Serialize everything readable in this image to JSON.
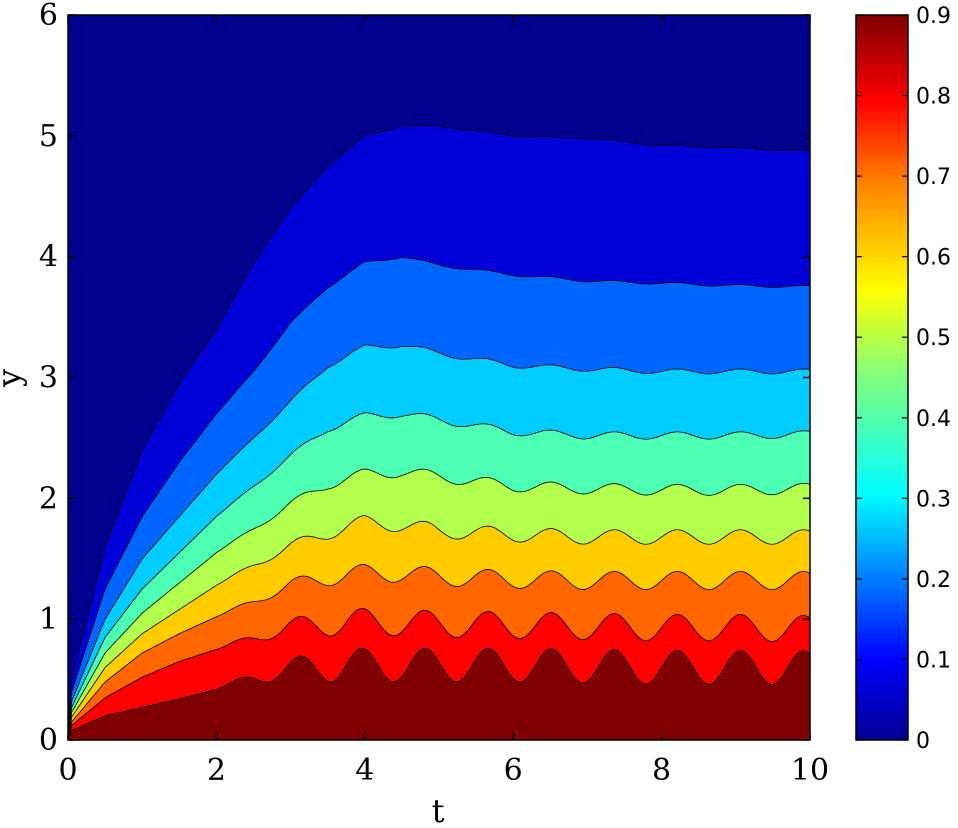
{
  "chart_data": {
    "type": "contour",
    "title": "",
    "xlabel": "t",
    "ylabel": "y",
    "xlim": [
      0,
      10
    ],
    "ylim": [
      0,
      6
    ],
    "x_ticks": [
      "0",
      "2",
      "4",
      "6",
      "8",
      "10"
    ],
    "y_ticks": [
      "0",
      "1",
      "2",
      "3",
      "4",
      "5",
      "6"
    ],
    "colorbar": {
      "range": [
        0,
        0.9
      ],
      "ticks": [
        "0",
        "0.1",
        "0.2",
        "0.3",
        "0.4",
        "0.5",
        "0.6",
        "0.7",
        "0.8",
        "0.9"
      ],
      "colormap": "jet"
    },
    "levels": [
      {
        "value": 0.05,
        "color": "#0000d9",
        "boundary": [
          [
            0.05,
            0.5
          ],
          [
            0.5,
            1.6
          ],
          [
            1,
            2.4
          ],
          [
            1.5,
            2.95
          ],
          [
            2,
            3.4
          ],
          [
            2.5,
            3.95
          ],
          [
            3,
            4.4
          ],
          [
            3.5,
            4.75
          ],
          [
            4,
            5.0
          ],
          [
            4.5,
            5.08
          ],
          [
            5,
            5.08
          ],
          [
            6,
            5.0
          ],
          [
            7,
            4.98
          ],
          [
            8,
            4.92
          ],
          [
            9,
            4.9
          ],
          [
            10,
            4.87
          ]
        ]
      },
      {
        "value": 0.15,
        "color": "#0066ff",
        "boundary": [
          [
            0.05,
            0.4
          ],
          [
            0.5,
            1.25
          ],
          [
            1,
            1.85
          ],
          [
            1.5,
            2.3
          ],
          [
            2,
            2.7
          ],
          [
            2.5,
            3.05
          ],
          [
            3,
            3.45
          ],
          [
            3.5,
            3.75
          ],
          [
            4,
            3.95
          ],
          [
            4.5,
            4.0
          ],
          [
            5,
            3.93
          ],
          [
            6,
            3.85
          ],
          [
            7,
            3.8
          ],
          [
            8,
            3.78
          ],
          [
            9,
            3.76
          ],
          [
            10,
            3.75
          ]
        ]
      },
      {
        "value": 0.25,
        "color": "#00ccff",
        "boundary": [
          [
            0.05,
            0.32
          ],
          [
            0.5,
            1.0
          ],
          [
            1,
            1.5
          ],
          [
            1.5,
            1.85
          ],
          [
            2,
            2.2
          ],
          [
            2.5,
            2.5
          ],
          [
            3,
            2.8
          ],
          [
            3.5,
            3.1
          ],
          [
            4,
            3.25
          ],
          [
            4.5,
            3.27
          ],
          [
            5,
            3.2
          ],
          [
            6,
            3.1
          ],
          [
            7,
            3.07
          ],
          [
            8,
            3.05
          ],
          [
            9,
            3.05
          ],
          [
            10,
            3.05
          ]
        ]
      },
      {
        "value": 0.35,
        "color": "#4dffb3",
        "boundary": [
          [
            0.05,
            0.27
          ],
          [
            0.5,
            0.85
          ],
          [
            1,
            1.25
          ],
          [
            1.5,
            1.55
          ],
          [
            2,
            1.85
          ],
          [
            2.5,
            2.1
          ],
          [
            3,
            2.35
          ],
          [
            3.5,
            2.58
          ],
          [
            4,
            2.68
          ],
          [
            4.5,
            2.7
          ],
          [
            5,
            2.65
          ],
          [
            6,
            2.55
          ],
          [
            7,
            2.52
          ],
          [
            8,
            2.52
          ],
          [
            9,
            2.52
          ],
          [
            10,
            2.53
          ]
        ]
      },
      {
        "value": 0.45,
        "color": "#b3ff4d",
        "boundary": [
          [
            0.05,
            0.23
          ],
          [
            0.5,
            0.72
          ],
          [
            1,
            1.05
          ],
          [
            1.5,
            1.3
          ],
          [
            2,
            1.55
          ],
          [
            2.5,
            1.75
          ],
          [
            3,
            1.95
          ],
          [
            3.5,
            2.12
          ],
          [
            4,
            2.2
          ],
          [
            4.5,
            2.22
          ],
          [
            5,
            2.18
          ],
          [
            6,
            2.1
          ],
          [
            7,
            2.08
          ],
          [
            8,
            2.07
          ],
          [
            9,
            2.07
          ],
          [
            10,
            2.08
          ]
        ]
      },
      {
        "value": 0.55,
        "color": "#ffcc00",
        "boundary": [
          [
            0.05,
            0.19
          ],
          [
            0.5,
            0.6
          ],
          [
            1,
            0.88
          ],
          [
            1.5,
            1.08
          ],
          [
            2,
            1.28
          ],
          [
            2.5,
            1.45
          ],
          [
            3,
            1.6
          ],
          [
            3.5,
            1.72
          ],
          [
            4,
            1.8
          ],
          [
            4.5,
            1.78
          ],
          [
            5,
            1.73
          ],
          [
            6,
            1.7
          ],
          [
            7,
            1.68
          ],
          [
            8,
            1.68
          ],
          [
            9,
            1.68
          ],
          [
            10,
            1.68
          ]
        ]
      },
      {
        "value": 0.65,
        "color": "#ff6600",
        "boundary": [
          [
            0.05,
            0.15
          ],
          [
            0.5,
            0.48
          ],
          [
            1,
            0.72
          ],
          [
            1.5,
            0.88
          ],
          [
            2,
            1.02
          ],
          [
            2.5,
            1.15
          ],
          [
            3,
            1.28
          ],
          [
            3.5,
            1.35
          ],
          [
            4,
            1.38
          ],
          [
            4.5,
            1.38
          ],
          [
            5,
            1.35
          ],
          [
            6,
            1.33
          ],
          [
            7,
            1.32
          ],
          [
            8,
            1.32
          ],
          [
            9,
            1.32
          ],
          [
            10,
            1.32
          ]
        ]
      },
      {
        "value": 0.75,
        "color": "#ff0000",
        "boundary": [
          [
            0.05,
            0.12
          ],
          [
            0.5,
            0.35
          ],
          [
            1,
            0.52
          ],
          [
            1.5,
            0.65
          ],
          [
            2,
            0.75
          ],
          [
            2.5,
            0.85
          ],
          [
            3,
            0.93
          ],
          [
            3.5,
            0.97
          ],
          [
            4,
            0.98
          ],
          [
            4.5,
            0.97
          ],
          [
            5,
            0.96
          ],
          [
            6,
            0.95
          ],
          [
            7,
            0.94
          ],
          [
            8,
            0.93
          ],
          [
            9,
            0.93
          ],
          [
            10,
            0.92
          ]
        ]
      },
      {
        "value": 0.85,
        "color": "#800000",
        "boundary": [
          [
            0.05,
            0.08
          ],
          [
            0.5,
            0.2
          ],
          [
            1,
            0.27
          ],
          [
            1.5,
            0.34
          ],
          [
            2,
            0.42
          ],
          [
            2.5,
            0.52
          ],
          [
            3,
            0.58
          ],
          [
            3.5,
            0.62
          ],
          [
            4,
            0.62
          ],
          [
            4.5,
            0.62
          ],
          [
            5,
            0.62
          ],
          [
            6,
            0.62
          ],
          [
            7,
            0.61
          ],
          [
            8,
            0.6
          ],
          [
            9,
            0.6
          ],
          [
            10,
            0.6
          ]
        ]
      }
    ],
    "background_color": "#00008f",
    "wave": {
      "period": 0.85,
      "amplitude": [
        0.005,
        0.01,
        0.02,
        0.03,
        0.045,
        0.06,
        0.075,
        0.11,
        0.14
      ],
      "start_t": 2.0
    }
  }
}
